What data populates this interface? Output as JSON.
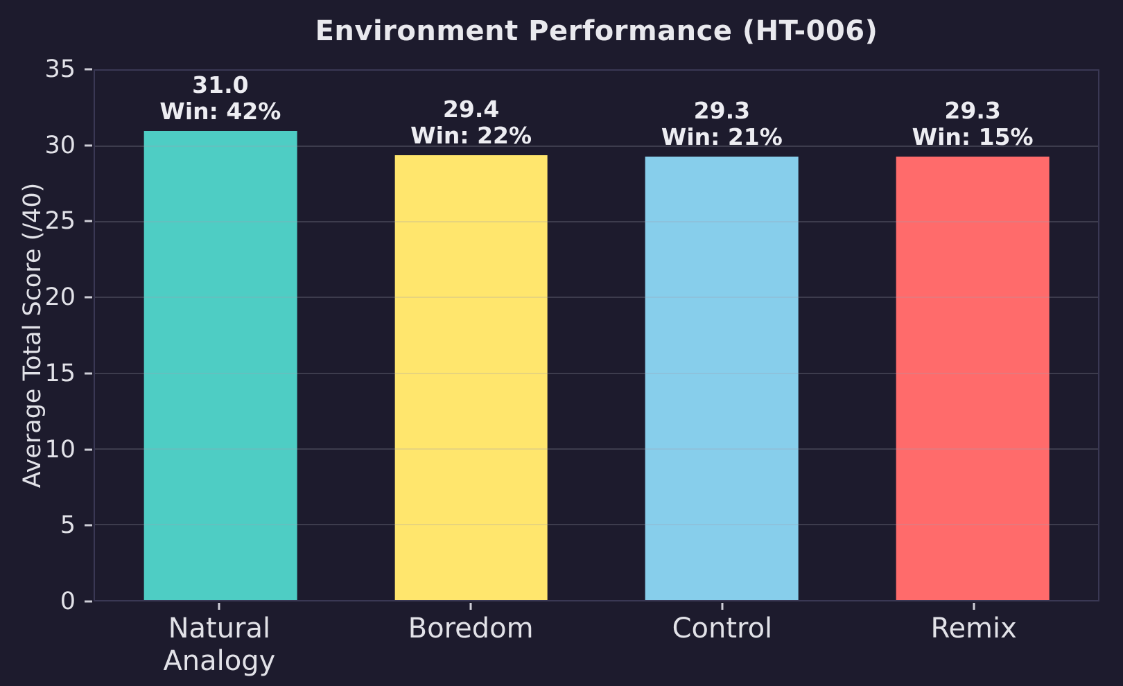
{
  "colors": {
    "background": "#1d1b2d",
    "plot_border": "#3a3854",
    "grid": "rgba(160,160,176,0.25)",
    "text": "#e6e6ec",
    "tick": "#cfcfd8"
  },
  "chart_data": {
    "type": "bar",
    "title": "Environment Performance (HT-006)",
    "ylabel": "Average Total Score (/40)",
    "xlabel": "",
    "ylim": [
      0,
      35
    ],
    "yticks": [
      0,
      5,
      10,
      15,
      20,
      25,
      30,
      35
    ],
    "grid": true,
    "legend": null,
    "categories": [
      "Natural\nAnalogy",
      "Boredom",
      "Control",
      "Remix"
    ],
    "values": [
      31.0,
      29.4,
      29.3,
      29.3
    ],
    "bar_colors": [
      "#4ECDC4",
      "#FFE66D",
      "#87CEEB",
      "#FF6B6B"
    ],
    "annotations": [
      {
        "score": "31.0",
        "win": "Win: 42%"
      },
      {
        "score": "29.4",
        "win": "Win: 22%"
      },
      {
        "score": "29.3",
        "win": "Win: 21%"
      },
      {
        "score": "29.3",
        "win": "Win: 15%"
      }
    ]
  }
}
